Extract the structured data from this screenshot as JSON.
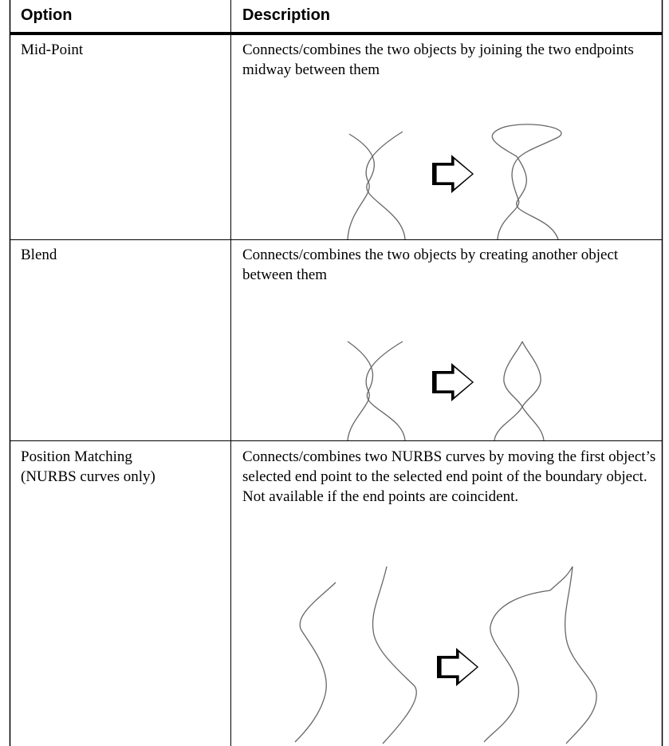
{
  "table": {
    "columns": [
      "Option",
      "Description"
    ],
    "rows": [
      [
        "Mid-Point",
        "Connects/combines the two objects by joining the two endpoints midway between them"
      ],
      [
        "Blend",
        "Connects/combines the two objects by creating another object between them"
      ],
      [
        [
          "Position Matching",
          "(NURBS curves only)"
        ],
        "Connects/combines two NURBS curves by moving the first object’s selected end point to the selected end point of the boundary object. Not available if the end points are coincident."
      ]
    ]
  }
}
